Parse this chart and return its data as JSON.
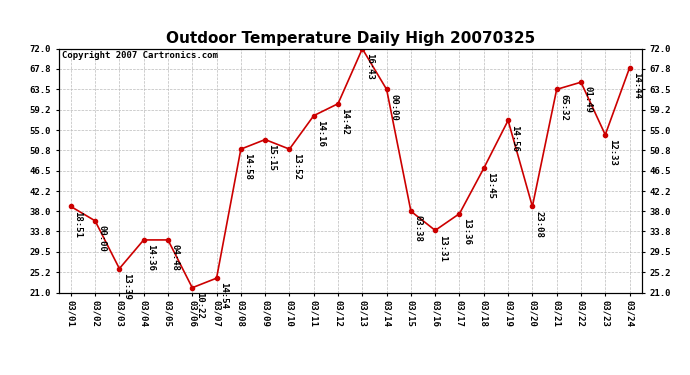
{
  "title": "Outdoor Temperature Daily High 20070325",
  "copyright": "Copyright 2007 Cartronics.com",
  "dates": [
    "03/01",
    "03/02",
    "03/03",
    "03/04",
    "03/05",
    "03/06",
    "03/07",
    "03/08",
    "03/09",
    "03/10",
    "03/11",
    "03/12",
    "03/13",
    "03/14",
    "03/15",
    "03/16",
    "03/17",
    "03/18",
    "03/19",
    "03/20",
    "03/21",
    "03/22",
    "03/23",
    "03/24"
  ],
  "temperatures": [
    39.0,
    36.0,
    26.0,
    32.0,
    32.0,
    22.0,
    24.0,
    51.0,
    53.0,
    51.0,
    58.0,
    60.5,
    72.0,
    63.5,
    38.0,
    34.0,
    37.5,
    47.0,
    57.0,
    39.0,
    63.5,
    65.0,
    54.0,
    68.0
  ],
  "time_labels": [
    "18:51",
    "00:00",
    "13:39",
    "14:36",
    "04:48",
    "10:22",
    "14:54",
    "14:58",
    "15:15",
    "13:52",
    "14:16",
    "14:42",
    "16:43",
    "00:00",
    "03:38",
    "13:31",
    "13:36",
    "13:45",
    "14:56",
    "23:08",
    "65:32",
    "01:49",
    "12:33",
    "14:44"
  ],
  "ylim": [
    21.0,
    72.0
  ],
  "yticks": [
    21.0,
    25.2,
    29.5,
    33.8,
    38.0,
    42.2,
    46.5,
    50.8,
    55.0,
    59.2,
    63.5,
    67.8,
    72.0
  ],
  "line_color": "#cc0000",
  "marker_color": "#cc0000",
  "bg_color": "#ffffff",
  "plot_bg_color": "#ffffff",
  "grid_color": "#bbbbbb",
  "title_fontsize": 11,
  "label_fontsize": 6.5,
  "copyright_fontsize": 6.5,
  "tick_fontsize": 6.5
}
